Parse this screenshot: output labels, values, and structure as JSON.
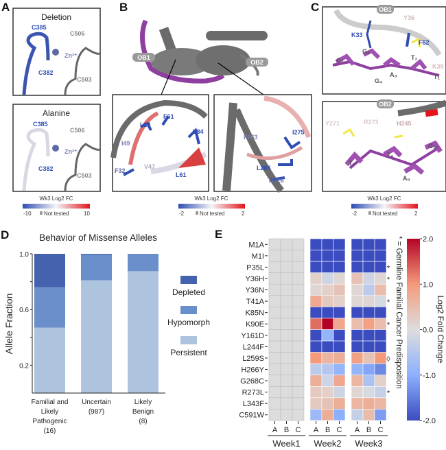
{
  "panel_labels": {
    "a": "A",
    "b": "B",
    "c": "C",
    "d": "D",
    "e": "E"
  },
  "panel_a": {
    "top_title": "Deletion",
    "bottom_title": "Alanine",
    "residues": {
      "c385": "C385",
      "c506": "C506",
      "zn": "Zn²⁺",
      "c382": "C382",
      "c503": "C503"
    },
    "colorbar": {
      "title": "Wk3 Log2 FC",
      "min": "-10",
      "not_tested": "Not tested",
      "max": "10"
    }
  },
  "panel_b": {
    "ob1": "OB1",
    "ob2": "OB2",
    "inset1_residues": {
      "f61": "F61",
      "l14": "L14",
      "l84": "L84",
      "i49": "I49",
      "v47": "V47",
      "f32": "F32",
      "l61": "L61"
    },
    "inset2_residues": {
      "f263": "F263",
      "i275": "I275",
      "l265": "L265",
      "h226": "H226"
    },
    "colorbar": {
      "title": "Wk3 Log2 FC",
      "min": "-2",
      "not_tested": "Not tested",
      "max": "2"
    }
  },
  "panel_c": {
    "top": {
      "domain": "OB1",
      "y36": "Y36",
      "k33": "K33",
      "f62": "F62",
      "g5": "G₅",
      "g6": "G₆",
      "t2": "T₂",
      "k39": "K39",
      "a3": "A₃",
      "g4": "G₄",
      "t1": "T₁"
    },
    "bottom": {
      "domain": "OB2",
      "y271": "Y271",
      "r273": "R273",
      "h245": "H245",
      "t7": "T₇",
      "t6": "T₆",
      "g10": "G₁₀",
      "a9": "A₉"
    },
    "colorbar": {
      "title": "Wk3 Log2 FC",
      "min": "-2",
      "not_tested": "Not tested",
      "max": "2"
    }
  },
  "colors": {
    "blue": "#2f4db3",
    "red": "#e3161b",
    "gray": "#6b6b6b",
    "purple": "#8e3fa0",
    "not_tested": "#dcdcdc"
  },
  "chart_data": [
    {
      "type": "bar",
      "stacked": true,
      "title": "Behavior of Missense Alleles",
      "ylabel": "Allele Fraction",
      "ylim": [
        0,
        1.0
      ],
      "yticks": [
        "0.2",
        "0.6",
        "1.0"
      ],
      "categories": [
        "Familial and Likely Pathogenic (16)",
        "Uncertain (987)",
        "Likely Benign (8)"
      ],
      "category_lines": [
        [
          "Familial and",
          "Likely",
          "Pathogenic",
          "(16)"
        ],
        [
          "Uncertain",
          "(987)"
        ],
        [
          "Likely",
          "Benign",
          "(8)"
        ]
      ],
      "series": [
        {
          "name": "Persistent",
          "color": "#aec3de",
          "values": [
            0.47,
            0.81,
            0.875
          ]
        },
        {
          "name": "Hypomorph",
          "color": "#6a8fcb",
          "values": [
            0.29,
            0.185,
            0.125
          ]
        },
        {
          "name": "Depleted",
          "color": "#4462ad",
          "values": [
            0.24,
            0.005,
            0.0
          ]
        }
      ],
      "legend_position": "right"
    },
    {
      "type": "heatmap",
      "rows": [
        "M1A",
        "M1I",
        "P35L",
        "Y36H",
        "Y36N",
        "T41A",
        "K85N",
        "K90E",
        "Y161D",
        "L244F",
        "L259S",
        "H266Y",
        "G268C",
        "R273L",
        "L343F",
        "C591W"
      ],
      "groups": [
        "Week1",
        "Week2",
        "Week3"
      ],
      "columns": [
        "A",
        "B",
        "C"
      ],
      "markers": [
        "",
        "",
        "*",
        "*",
        "",
        "*",
        "",
        "*",
        "",
        "",
        "◊",
        "",
        "",
        "*",
        "",
        ""
      ],
      "marker_note": "* = Germline Familial Cancer Predisposition",
      "colorbar_label": "Log2 Fold Change",
      "colorbar_ticks": [
        "2.0",
        "1.0",
        "0.0",
        "-1.0",
        "-2.0"
      ],
      "vmin": -2.0,
      "vmax": 2.0,
      "week1_not_tested": true,
      "values": {
        "Week2": [
          [
            -2,
            -2,
            -2
          ],
          [
            -2,
            -2,
            -2
          ],
          [
            -2,
            -2,
            -2
          ],
          [
            0.2,
            -0.2,
            0.1
          ],
          [
            0.1,
            0.2,
            0.4
          ],
          [
            0.8,
            0.3,
            0.2
          ],
          [
            -2,
            -2,
            -2
          ],
          [
            1.3,
            2.0,
            0.8
          ],
          [
            -2,
            -0.9,
            -2
          ],
          [
            -2,
            -2,
            -2
          ],
          [
            1.0,
            0.6,
            0.7
          ],
          [
            -0.4,
            -0.5,
            -0.9
          ],
          [
            0.7,
            -0.2,
            0.8
          ],
          [
            0.3,
            0.2,
            -0.2
          ],
          [
            0.3,
            0.4,
            0.7
          ],
          [
            -0.8,
            0.7,
            -1.0
          ]
        ],
        "Week3": [
          [
            -2,
            -2,
            -2
          ],
          [
            -2,
            -2,
            -2
          ],
          [
            -2,
            -2,
            -2
          ],
          [
            0.4,
            -0.2,
            0.1
          ],
          [
            0.1,
            -0.4,
            0.5
          ],
          [
            0.1,
            0.1,
            -0.1
          ],
          [
            -2,
            -2,
            -2
          ],
          [
            0.5,
            0.9,
            0.5
          ],
          [
            -2,
            -2,
            -2
          ],
          [
            -2,
            -2,
            -2
          ],
          [
            0.9,
            0.4,
            1.0
          ],
          [
            -0.9,
            -1.1,
            -1.4
          ],
          [
            0.6,
            -0.6,
            0.2
          ],
          [
            0.1,
            -0.1,
            -0.3
          ],
          [
            0.6,
            0.7,
            0.6
          ],
          [
            -0.3,
            0.5,
            -1.2
          ]
        ]
      }
    }
  ]
}
